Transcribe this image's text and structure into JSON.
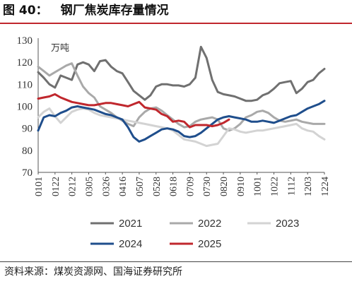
{
  "header": {
    "figure_no": "图 40：",
    "title": "钢厂焦炭库存量情况"
  },
  "footer": {
    "source": "资料来源：煤炭资源网、国海证券研究所"
  },
  "chart_data": {
    "type": "line",
    "unit_label": "万吨",
    "ylim": [
      70,
      130
    ],
    "yticks": [
      70,
      80,
      90,
      100,
      110,
      120,
      130
    ],
    "xlim": [
      0,
      51
    ],
    "x_tick_labels": [
      "0101",
      "0122",
      "0212",
      "0305",
      "0326",
      "0416",
      "0507",
      "0528",
      "0618",
      "0709",
      "0730",
      "0820",
      "0910",
      "1001",
      "1022",
      "1112",
      "1203",
      "1224"
    ],
    "grid": false,
    "legend_position": "bottom",
    "series": [
      {
        "name": "2021",
        "color": "#707070",
        "values": [
          115.5,
          113,
          110,
          108.5,
          114,
          113,
          112,
          119,
          120,
          119,
          116,
          120.5,
          121,
          118,
          116,
          115,
          111,
          107,
          105,
          103,
          105,
          109,
          110,
          110,
          109.5,
          109.5,
          109,
          110,
          113,
          127,
          122,
          112,
          106.5,
          105.5,
          105,
          104.5,
          103.5,
          102.5,
          102.5,
          103,
          105,
          106,
          108,
          110.5,
          111,
          111.5,
          106,
          108,
          111,
          112,
          115,
          117
        ]
      },
      {
        "name": "2022",
        "color": "#a9a9a9",
        "values": [
          118,
          116,
          114,
          115.5,
          117,
          118.5,
          119.5,
          114,
          109,
          106,
          104,
          100,
          98.5,
          97,
          95,
          93.5,
          92,
          91,
          95,
          97.5,
          99,
          99.5,
          98,
          96,
          94,
          92,
          90.5,
          91,
          93,
          94,
          94.5,
          95,
          94,
          90,
          89,
          90,
          92,
          95,
          96,
          97.5,
          98,
          97,
          95,
          93.5,
          93,
          93.5,
          94,
          93,
          92.5,
          92,
          92,
          92
        ]
      },
      {
        "name": "2023",
        "color": "#d3d3d3",
        "values": [
          95,
          97.5,
          99,
          95.5,
          92.5,
          95,
          97.5,
          98.5,
          99,
          98.5,
          97,
          96,
          95.5,
          95,
          94.5,
          94,
          93.5,
          93,
          92.5,
          92,
          91.5,
          91,
          90.5,
          90,
          89,
          87,
          85,
          84.5,
          84,
          83,
          82,
          82.5,
          83,
          86.5,
          90,
          89.5,
          88.5,
          88,
          88.5,
          89,
          89,
          89.5,
          90,
          90.5,
          91,
          91.5,
          92,
          90,
          89,
          88.5,
          86.5,
          85
        ]
      },
      {
        "name": "2024",
        "color": "#1f4e8c",
        "values": [
          89,
          95,
          96,
          95.5,
          97,
          98,
          99.5,
          100,
          99.5,
          99,
          98.5,
          97.5,
          96.5,
          96,
          95,
          94,
          90.5,
          86,
          84,
          85,
          86.5,
          88,
          89.5,
          90,
          89.5,
          88.5,
          86.5,
          86,
          86.5,
          88,
          90,
          92,
          94,
          95,
          95.5,
          95,
          94.5,
          94,
          93,
          93,
          93.5,
          93,
          92.5,
          93.5,
          94.5,
          95.5,
          96,
          97.5,
          99,
          100,
          101,
          102.5
        ]
      },
      {
        "name": "2025",
        "color": "#c0272d",
        "values": [
          103.5,
          104,
          104.5,
          105.5,
          104,
          103,
          102,
          101.5,
          101,
          100.5,
          100.5,
          101,
          101.5,
          101.5,
          101,
          100.5,
          100,
          101,
          102,
          99.5,
          99,
          98.5,
          96.5,
          95.5,
          93,
          93.5,
          93,
          90.5,
          91.5,
          91.5,
          91.5,
          91,
          91.5,
          92.5,
          94,
          null,
          null,
          null,
          null,
          null,
          null,
          null,
          null,
          null,
          null,
          null,
          null,
          null,
          null,
          null,
          null,
          null
        ]
      }
    ]
  }
}
